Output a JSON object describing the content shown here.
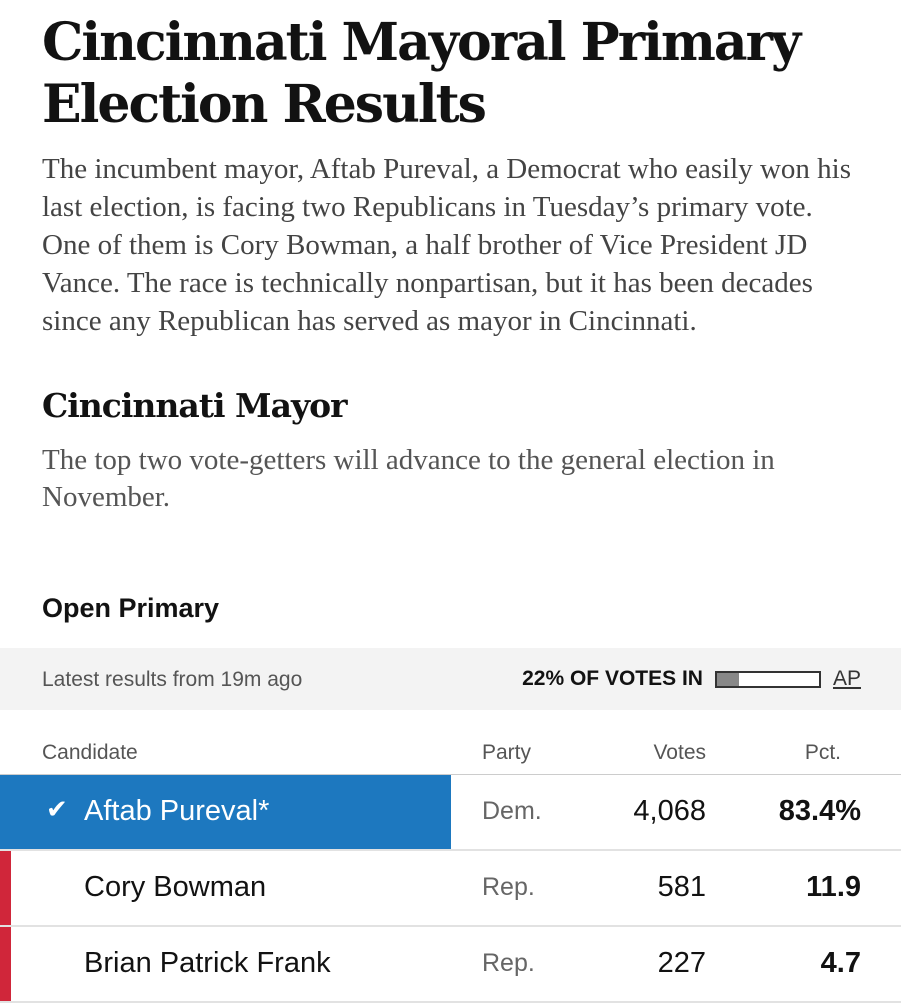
{
  "article": {
    "headline": "Cincinnati Mayoral Primary Election Results",
    "intro": "The incumbent mayor, Aftab Pureval, a Democrat who easily won his last election, is facing two Republicans in Tuesday’s primary vote. One of them is Cory Bowman, a half brother of Vice President JD Vance. The race is technically nonpartisan, but it has been decades since any Republican has served as mayor in Cincinnati."
  },
  "race": {
    "title": "Cincinnati Mayor",
    "subtitle": "The top two vote-getters will advance to the general election in November.",
    "primary_type": "Open Primary"
  },
  "status": {
    "latest": "Latest results from 19m ago",
    "votes_in_label": "22% OF VOTES IN",
    "votes_in_fraction": 0.22,
    "source": "AP"
  },
  "table": {
    "headers": {
      "candidate": "Candidate",
      "party": "Party",
      "votes": "Votes",
      "pct": "Pct."
    },
    "rows": [
      {
        "name": "Aftab Pureval*",
        "party": "Dem.",
        "votes": "4,068",
        "pct": "83.4%",
        "winner": true
      },
      {
        "name": "Cory Bowman",
        "party": "Rep.",
        "votes": "581",
        "pct": "11.9",
        "winner": false
      },
      {
        "name": "Brian Patrick Frank",
        "party": "Rep.",
        "votes": "227",
        "pct": "4.7",
        "winner": false
      }
    ]
  },
  "colors": {
    "winner_blue": "#1d78bf",
    "republican_red": "#d0263a",
    "status_bg": "#f3f3f3"
  },
  "icons": {
    "winner_check": "checkmark-icon"
  }
}
